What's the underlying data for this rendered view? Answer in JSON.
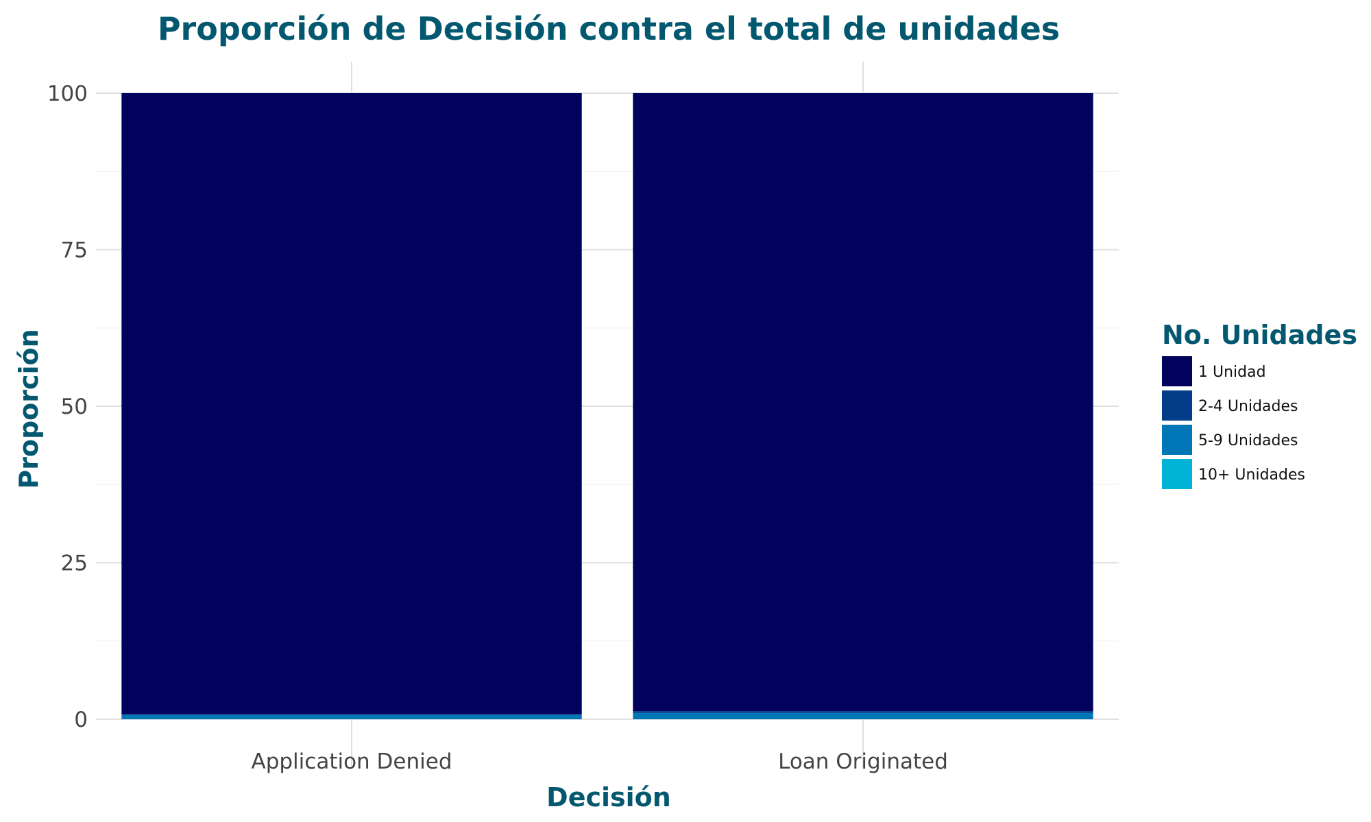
{
  "chart_data": {
    "type": "bar",
    "stacked": true,
    "title": "Proporción de Decisión contra el total de unidades",
    "xlabel": "Decisión",
    "ylabel": "Proporción",
    "categories": [
      "Application Denied",
      "Loan Originated"
    ],
    "ylim": [
      0,
      100
    ],
    "yticks": [
      0,
      25,
      50,
      75,
      100
    ],
    "grid": true,
    "legend": {
      "title": "No. Unidades",
      "position": "right"
    },
    "series": [
      {
        "name": "10+ Unidades",
        "color": "#00b2d6",
        "values": [
          0.0,
          0.0
        ]
      },
      {
        "name": "5-9 Unidades",
        "color": "#0076b6",
        "values": [
          0.7,
          1.0
        ]
      },
      {
        "name": "2-4 Unidades",
        "color": "#033d8a",
        "values": [
          0.1,
          0.3
        ]
      },
      {
        "name": "1 Unidad",
        "color": "#02025c",
        "values": [
          99.2,
          98.7
        ]
      }
    ],
    "legend_order": [
      "1 Unidad",
      "2-4 Unidades",
      "5-9 Unidades",
      "10+ Unidades"
    ]
  }
}
